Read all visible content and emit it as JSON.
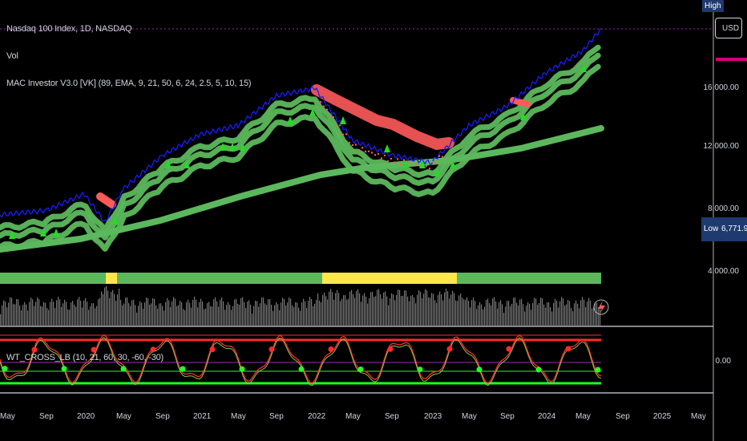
{
  "legend": {
    "symbol": "Nasdaq 100 Index, 1D, NASDAQ",
    "volume": "Vol",
    "indicator": "MAC Investor V3.0 [VK] (89, EMA, 9, 21, 50, 6, 24, 2.5, 5, 10, 15)",
    "oscillator": "WT_CROSS_LB (10, 21, 60, 30, -60, -30)"
  },
  "price_axis": {
    "ticks": [
      "16,000.00",
      "12,000.00",
      "8,000.00",
      "4,000.00"
    ],
    "oscillator_tick": "0.00",
    "currency": "USD",
    "high_label": "High",
    "low_label": "Low",
    "low_value": "6,771.91"
  },
  "time_axis": {
    "ticks": [
      "May",
      "Sep",
      "2020",
      "May",
      "Sep",
      "2021",
      "May",
      "Sep",
      "2022",
      "May",
      "Sep",
      "2023",
      "May",
      "Sep",
      "2024",
      "May",
      "Sep",
      "2025",
      "May"
    ]
  },
  "colors": {
    "background": "#000000",
    "price_line": "#1a1aff",
    "ribbon_bull": "#5cb85c",
    "ribbon_bear": "#ff5a5a",
    "band_bull": "#5cb85c",
    "band_warn": "#ffe64d",
    "osc_red": "#ff2a2a",
    "osc_green": "#22ff22",
    "high_line": "#9c27b0",
    "axis_tag": "#1e3a6e"
  },
  "chart_data": {
    "type": "line",
    "title": "Nasdaq 100 Index, 1D, NASDAQ",
    "x": [
      "2019-05",
      "2019-09",
      "2020-01",
      "2020-03",
      "2020-05",
      "2020-09",
      "2021-01",
      "2021-05",
      "2021-09",
      "2022-01",
      "2022-05",
      "2022-09",
      "2023-01",
      "2023-05",
      "2023-09",
      "2024-01",
      "2024-05",
      "2024-07"
    ],
    "series": [
      {
        "values": [
          7500,
          7800,
          8900,
          7000,
          9200,
          11500,
          12900,
          13500,
          15500,
          16000,
          12500,
          11500,
          11000,
          13500,
          14800,
          17000,
          18500,
          20000
        ]
      }
    ],
    "ylim": [
      3000,
      21000
    ],
    "grid": false
  }
}
